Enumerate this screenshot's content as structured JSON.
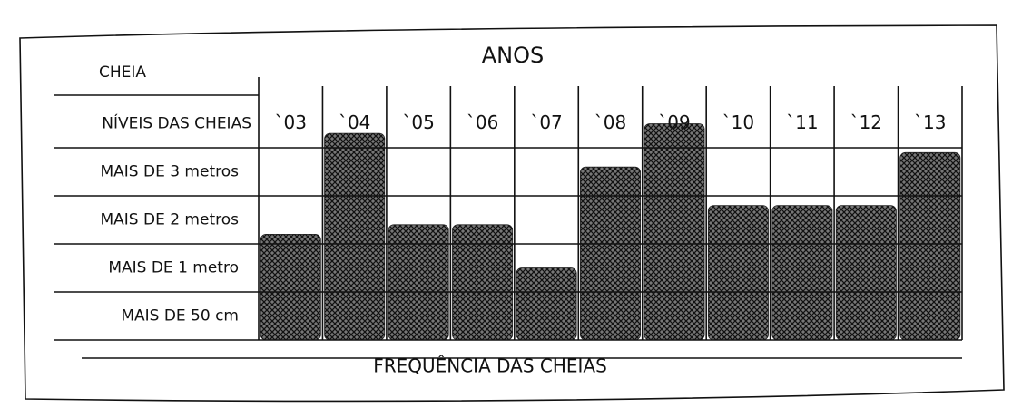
{
  "chart_data": {
    "type": "bar",
    "title": "FREQUÊNCIA DAS CHEIAS",
    "xlabel": "ANOS",
    "ylabel": "CHEIA",
    "row_header": "NÍVEIS DAS CHEIAS",
    "categories": [
      "`03",
      "`04",
      "`05",
      "`06",
      "`07",
      "`08",
      "`09",
      "`10",
      "`11",
      "`12",
      "`13"
    ],
    "values": [
      2.2,
      4.3,
      2.4,
      2.4,
      1.5,
      3.6,
      4.5,
      2.8,
      2.8,
      2.8,
      3.9
    ],
    "color": "#222222",
    "ylim": [
      0,
      5
    ],
    "yticks": [
      {
        "value": 0.5,
        "label": "MAIS DE 50 cm"
      },
      {
        "value": 1.5,
        "label": "MAIS DE 1 metro"
      },
      {
        "value": 2.5,
        "label": "MAIS DE 2 metros"
      },
      {
        "value": 3.5,
        "label": "MAIS DE 3 metros"
      }
    ]
  }
}
